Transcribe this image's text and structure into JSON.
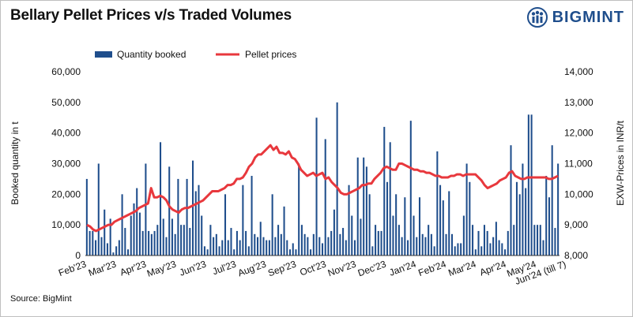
{
  "title": "Bellary Pellet Prices v/s Traded Volumes",
  "logo_text": "BIGMINT",
  "source": "Source: BigMint",
  "chart_data": {
    "type": "bar+line",
    "title": "Bellary Pellet Prices v/s Traded Volumes",
    "ylabel_left": "Booked quantity in t",
    "ylabel_right": "EXW-Prices in INR/t",
    "ylim_left": [
      0,
      60000
    ],
    "ylim_right": [
      8000,
      14000
    ],
    "yticks_left": [
      "0",
      "10,000",
      "20,000",
      "30,000",
      "40,000",
      "50,000",
      "60,000"
    ],
    "yticks_right": [
      "8,000",
      "9,000",
      "10,000",
      "11,000",
      "12,000",
      "13,000",
      "14,000"
    ],
    "x_tick_labels": [
      "Feb'23",
      "Mar'23",
      "Apr'23",
      "May'23",
      "Jun'23",
      "Jul'23",
      "Aug'23",
      "Sep'23",
      "Oct'23",
      "Nov'23",
      "Dec'23",
      "Jan'24",
      "Feb'24",
      "Mar'24",
      "Apr'24",
      "May'24",
      "Jun'24 (till 7)"
    ],
    "legend": [
      "Quantity booked",
      "Pellet prices"
    ],
    "legend_position": "top",
    "colors": {
      "bars": "#1f4e8c",
      "line": "#e8383d"
    },
    "series": [
      {
        "name": "Quantity booked",
        "type": "bar",
        "values": [
          25000,
          8000,
          8000,
          5000,
          30000,
          6000,
          15000,
          4000,
          12000,
          1000,
          3000,
          5000,
          20000,
          9000,
          2000,
          13000,
          17000,
          22000,
          14000,
          8000,
          30000,
          8000,
          7000,
          8000,
          10000,
          37000,
          12000,
          6000,
          29000,
          12000,
          7000,
          25000,
          10000,
          10000,
          25000,
          9000,
          31000,
          21000,
          23000,
          13000,
          3000,
          2000,
          10000,
          6000,
          7000,
          3000,
          5000,
          20000,
          5000,
          9000,
          2000,
          8000,
          5000,
          23000,
          8000,
          3000,
          26000,
          7000,
          6000,
          11000,
          6000,
          5000,
          5000,
          20000,
          6000,
          10000,
          7000,
          16000,
          5000,
          2000,
          4000,
          2000,
          30000,
          10000,
          7000,
          6000,
          2000,
          7000,
          45000,
          6000,
          4000,
          38000,
          6000,
          8000,
          15000,
          50000,
          7000,
          9000,
          5000,
          23000,
          13000,
          5000,
          32000,
          12000,
          32000,
          29000,
          20000,
          3000,
          10000,
          8000,
          8000,
          42000,
          24000,
          37000,
          13000,
          20000,
          10000,
          6000,
          19000,
          5000,
          44000,
          13000,
          6000,
          19000,
          7000,
          6000,
          10000,
          7000,
          3000,
          34000,
          23000,
          18000,
          7000,
          21000,
          7000,
          3000,
          4000,
          4000,
          13000,
          30000,
          24000,
          10000,
          2000,
          8000,
          3000,
          10000,
          8000,
          4000,
          6000,
          11000,
          5000,
          4000,
          2000,
          8000,
          36000,
          10000,
          24000,
          20000,
          30000,
          22000,
          46000,
          46000,
          10000,
          10000,
          10000,
          5000,
          26000,
          19000,
          36000,
          9000,
          30000
        ]
      },
      {
        "name": "Pellet prices",
        "type": "line",
        "values": [
          9000,
          8950,
          8850,
          8800,
          8850,
          8900,
          8950,
          9000,
          9000,
          9100,
          9150,
          9200,
          9250,
          9300,
          9350,
          9400,
          9450,
          9550,
          9600,
          9650,
          9700,
          10200,
          9900,
          9900,
          9950,
          9900,
          9800,
          9600,
          9500,
          9450,
          9400,
          9500,
          9550,
          9550,
          9600,
          9650,
          9700,
          9750,
          9800,
          9900,
          10000,
          10100,
          10100,
          10100,
          10150,
          10200,
          10300,
          10300,
          10350,
          10500,
          10500,
          10550,
          10700,
          10900,
          11000,
          11200,
          11300,
          11300,
          11400,
          11500,
          11600,
          11450,
          11550,
          11350,
          11350,
          11300,
          11400,
          11200,
          11150,
          11000,
          10800,
          10700,
          10600,
          10650,
          10700,
          10600,
          10650,
          10700,
          10500,
          10550,
          10400,
          10300,
          10200,
          10050,
          10000,
          10000,
          10050,
          10100,
          10150,
          10200,
          10300,
          10300,
          10350,
          10350,
          10500,
          10600,
          10700,
          10850,
          10900,
          10850,
          10800,
          10800,
          11000,
          11000,
          10950,
          10900,
          10850,
          10800,
          10800,
          10750,
          10750,
          10700,
          10700,
          10650,
          10600,
          10600,
          10550,
          10550,
          10550,
          10600,
          10600,
          10650,
          10650,
          10600,
          10650,
          10650,
          10650,
          10650,
          10550,
          10450,
          10300,
          10200,
          10250,
          10300,
          10350,
          10450,
          10500,
          10550,
          10700,
          10750,
          10600,
          10550,
          10500,
          10500,
          10550,
          10550,
          10550,
          10550,
          10550,
          10550,
          10550,
          10500,
          10500,
          10550,
          10600
        ]
      }
    ]
  }
}
